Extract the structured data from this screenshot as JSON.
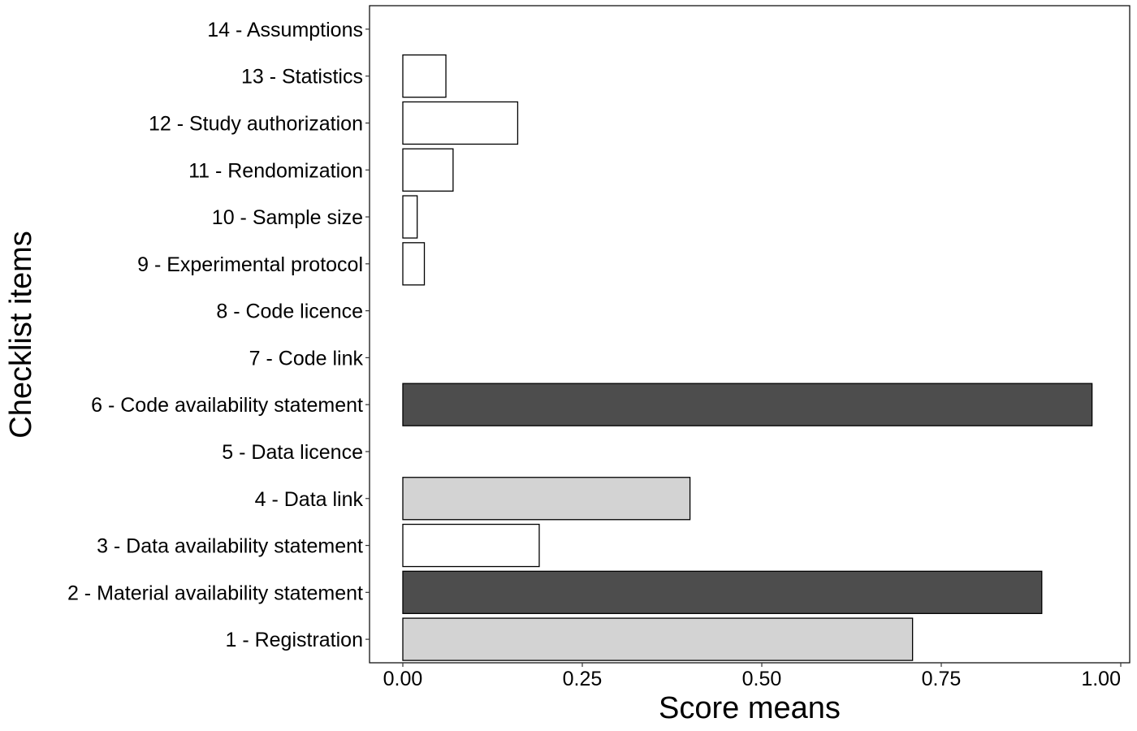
{
  "chart_data": {
    "type": "bar",
    "orientation": "horizontal",
    "xlabel": "Score means",
    "ylabel": "Checklist items",
    "xlim": [
      0,
      1
    ],
    "x_ticks": [
      "0.00",
      "0.25",
      "0.50",
      "0.75",
      "1.00"
    ],
    "grid": false,
    "legend": "none",
    "categories": [
      "1 - Registration",
      "2 - Material availability statement",
      "3 - Data availability statement",
      "4 - Data link",
      "5 - Data licence",
      "6 - Code availability statement",
      "7 - Code link",
      "8 - Code licence",
      "9 - Experimental protocol",
      "10 - Sample size",
      "11 - Rendomization",
      "12 - Study authorization",
      "13 - Statistics",
      "14 - Assumptions"
    ],
    "values": [
      0.71,
      0.89,
      0.19,
      0.4,
      0.0,
      0.96,
      0.0,
      0.0,
      0.03,
      0.02,
      0.07,
      0.16,
      0.06,
      0.0
    ],
    "fill_colors": [
      "#d3d3d3",
      "#4d4d4d",
      "#ffffff",
      "#d3d3d3",
      "#ffffff",
      "#4d4d4d",
      "#ffffff",
      "#ffffff",
      "#ffffff",
      "#ffffff",
      "#ffffff",
      "#ffffff",
      "#ffffff",
      "#ffffff"
    ],
    "border_color": "#000000"
  }
}
